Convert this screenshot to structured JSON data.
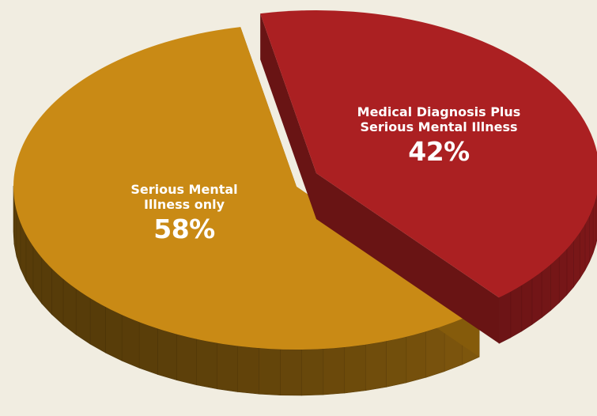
{
  "chart_data": {
    "type": "pie",
    "title": "",
    "slices": [
      {
        "label": "Serious Mental Illness only",
        "label_lines": [
          "Serious Mental",
          "Illness only"
        ],
        "value": 58,
        "value_label": "58%",
        "color": "#c98a15",
        "side_color": "#8c600c"
      },
      {
        "label": "Medical Diagnosis Plus Serious Mental Illness",
        "label_lines": [
          "Medical Diagnosis Plus",
          "Serious Mental Illness"
        ],
        "value": 42,
        "value_label": "42%",
        "color": "#ab2022",
        "side_color": "#6e1515",
        "exploded": true
      }
    ]
  },
  "colors": {
    "background": "#f1ede1"
  }
}
